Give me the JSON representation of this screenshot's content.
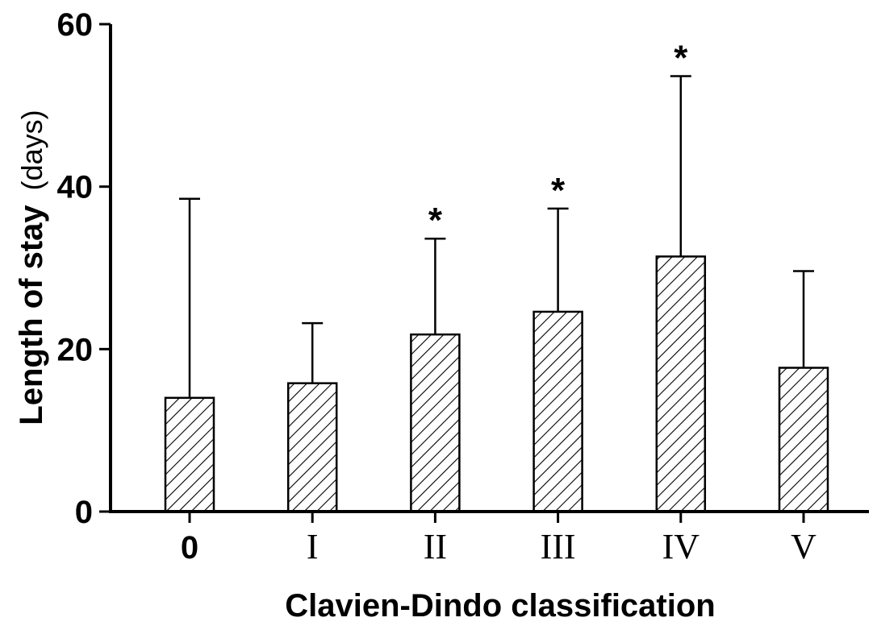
{
  "chart_data": {
    "type": "bar",
    "xlabel": "Clavien-Dindo classification",
    "ylabel_main": "Length of stay",
    "ylabel_unit": "(days)",
    "ylim": [
      0,
      60
    ],
    "yticks": [
      "0",
      "20",
      "40",
      "60"
    ],
    "categories": [
      "0",
      "I",
      "II",
      "III",
      "IV",
      "V"
    ],
    "values": [
      14,
      15.8,
      21.8,
      24.6,
      31.4,
      17.7
    ],
    "error_upper": [
      38.5,
      23.2,
      33.6,
      37.3,
      53.6,
      29.6
    ],
    "annotations": [
      "",
      "",
      "*",
      "*",
      "*",
      ""
    ],
    "bar_pattern": "diagonal-hatch",
    "grid": false
  }
}
